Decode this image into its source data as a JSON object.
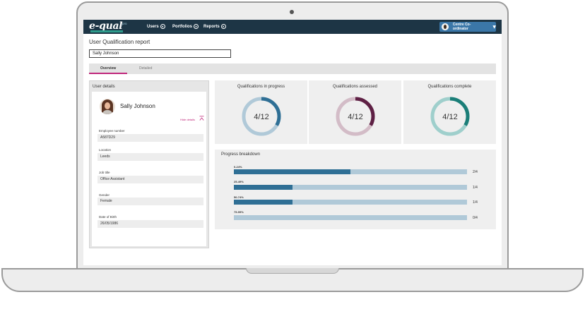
{
  "app": {
    "logo": "e-qual",
    "logo_sup": "pro",
    "nav": [
      {
        "label": "Users"
      },
      {
        "label": "Portfolios"
      },
      {
        "label": "Reports"
      }
    ],
    "user_menu": {
      "label": "Centre Co-ordinator"
    }
  },
  "page": {
    "title": "User Qualification report",
    "user_input_value": "Sally Johnson"
  },
  "tabs": [
    {
      "label": "Overview",
      "active": true
    },
    {
      "label": "Detailed",
      "active": false
    }
  ],
  "user_details": {
    "heading": "User details",
    "name": "Sally Johnson",
    "hide_details": "Hide details",
    "fields": [
      {
        "label": "Employee number",
        "value": "A587D29"
      },
      {
        "label": "Location",
        "value": "Leeds"
      },
      {
        "label": "Job title",
        "value": "Office Assistant"
      },
      {
        "label": "Gender",
        "value": "Female"
      },
      {
        "label": "Date of Birth",
        "value": "26/05/1986"
      }
    ]
  },
  "summary_cards": [
    {
      "title": "Qualifications in progress",
      "value": "4/12",
      "fraction": 0.333,
      "color": "#2f6f95",
      "track": "#b0c9d8"
    },
    {
      "title": "Qualifications assessed",
      "value": "4/12",
      "fraction": 0.333,
      "color": "#5e2044",
      "track": "#d3bcc7"
    },
    {
      "title": "Qualifications complete",
      "value": "4/12",
      "fraction": 0.333,
      "color": "#1b7e78",
      "track": "#9fcfcc"
    }
  ],
  "progress_breakdown": {
    "title": "Progress breakdown",
    "rows": [
      {
        "label": "0-24%",
        "count": "2/4",
        "fraction": 0.5
      },
      {
        "label": "25-49%",
        "count": "1/4",
        "fraction": 0.25
      },
      {
        "label": "50-74%",
        "count": "1/4",
        "fraction": 0.25
      },
      {
        "label": "75-99%",
        "count": "0/4",
        "fraction": 0
      }
    ]
  }
}
